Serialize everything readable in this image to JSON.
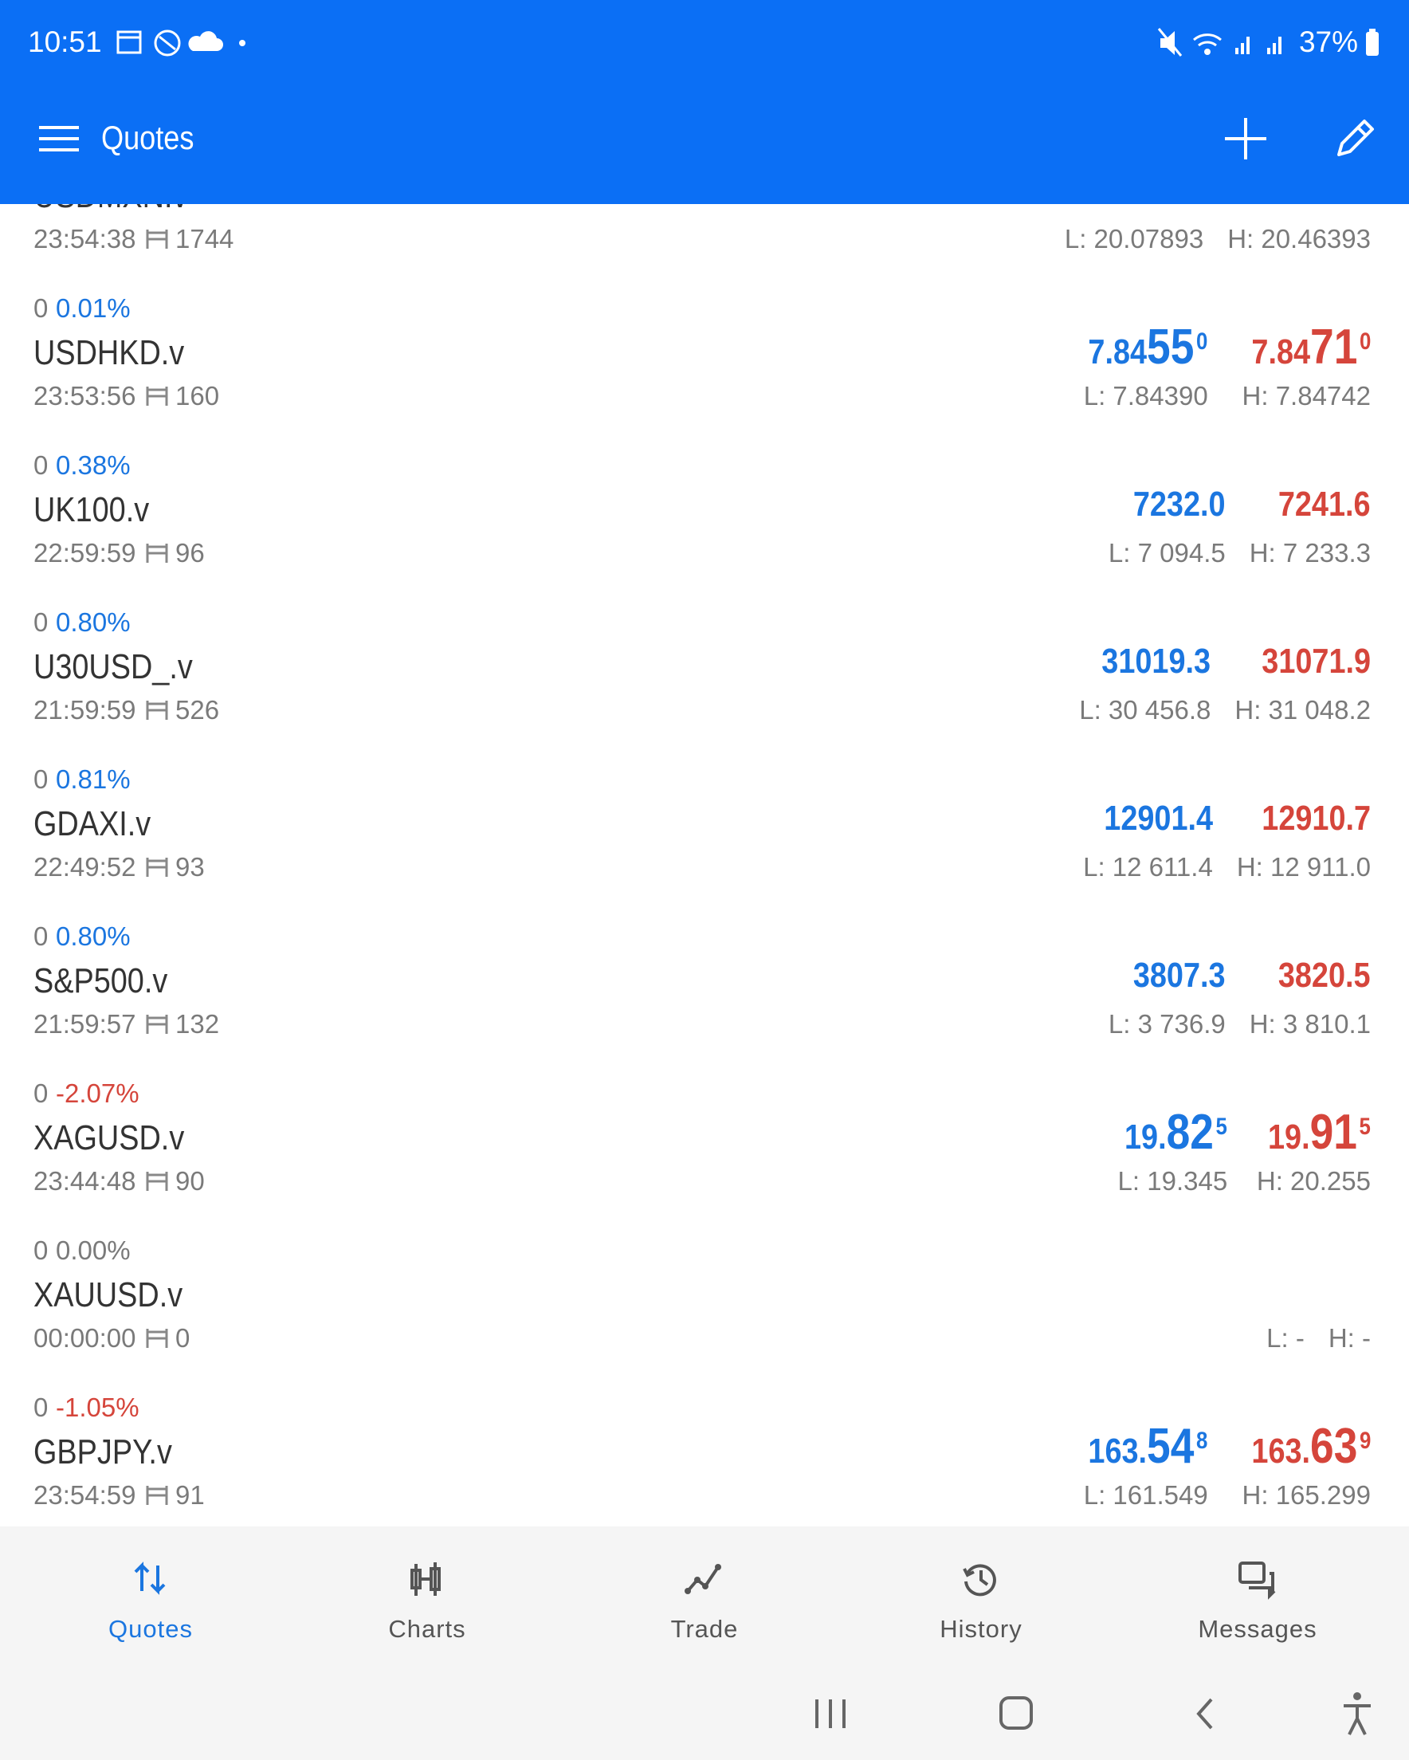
{
  "status_bar": {
    "time": "10:51",
    "battery": "37%"
  },
  "app_bar": {
    "title": "Quotes"
  },
  "quotes": [
    {
      "symbol": "USDMXN.v",
      "time": "23:54:38",
      "spread": "1744",
      "low": "L: 20.07893",
      "high": "H: 20.46393"
    },
    {
      "change": "0",
      "percent": "0.01%",
      "symbol": "USDHKD.v",
      "time": "23:53:56",
      "spread": "160",
      "bid": [
        "7.84",
        "55",
        "0"
      ],
      "ask": [
        "7.84",
        "71",
        "0"
      ],
      "low": "L: 7.84390",
      "high": "H: 7.84742"
    },
    {
      "change": "0",
      "percent": "0.38%",
      "symbol": "UK100.v",
      "time": "22:59:59",
      "spread": "96",
      "bid": [
        "7232.0"
      ],
      "ask": [
        "7241.6"
      ],
      "low": "L: 7 094.5",
      "high": "H: 7 233.3"
    },
    {
      "change": "0",
      "percent": "0.80%",
      "symbol": "U30USD_.v",
      "time": "21:59:59",
      "spread": "526",
      "bid": [
        "31019.3"
      ],
      "ask": [
        "31071.9"
      ],
      "low": "L: 30 456.8",
      "high": "H: 31 048.2"
    },
    {
      "change": "0",
      "percent": "0.81%",
      "symbol": "GDAXI.v",
      "time": "22:49:52",
      "spread": "93",
      "bid": [
        "12901.4"
      ],
      "ask": [
        "12910.7"
      ],
      "low": "L: 12 611.4",
      "high": "H: 12 911.0"
    },
    {
      "change": "0",
      "percent": "0.80%",
      "symbol": "S&P500.v",
      "time": "21:59:57",
      "spread": "132",
      "bid": [
        "3807.3"
      ],
      "ask": [
        "3820.5"
      ],
      "low": "L: 3 736.9",
      "high": "H: 3 810.1"
    },
    {
      "change": "0",
      "percent": "-2.07%",
      "symbol": "XAGUSD.v",
      "time": "23:44:48",
      "spread": "90",
      "bid": [
        "19.",
        "82",
        "5"
      ],
      "ask": [
        "19.",
        "91",
        "5"
      ],
      "low": "L: 19.345",
      "high": "H: 20.255"
    },
    {
      "change": "0",
      "percent": "0.00%",
      "symbol": "XAUUSD.v",
      "time": "00:00:00",
      "spread": "0",
      "low": "L: -",
      "high": "H: -"
    },
    {
      "change": "0",
      "percent": "-1.05%",
      "symbol": "GBPJPY.v",
      "time": "23:54:59",
      "spread": "91",
      "bid": [
        "163.",
        "54",
        "8"
      ],
      "ask": [
        "163.",
        "63",
        "9"
      ],
      "low": "L: 161.549",
      "high": "H: 165.299"
    }
  ],
  "bottom_nav": [
    "Quotes",
    "Charts",
    "Trade",
    "History",
    "Messages"
  ]
}
